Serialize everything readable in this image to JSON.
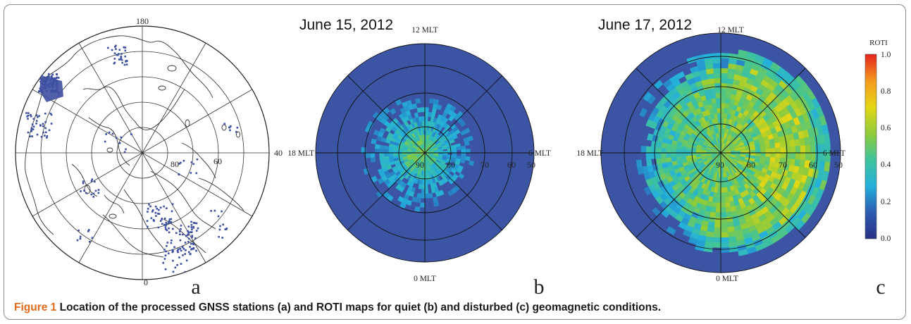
{
  "panel_a": {
    "labels": {
      "top": "180",
      "bottom": "0",
      "right": "40",
      "lat_80": "80",
      "lat_60": "60"
    },
    "letter": "a",
    "station_color": "#3d4fa0"
  },
  "panel_b": {
    "date": "June 15, 2012",
    "mlt": {
      "top": "12 MLT",
      "bottom": "0 MLT",
      "left": "18 MLT",
      "right": "6 MLT"
    },
    "lat_ticks": [
      "90",
      "80",
      "70",
      "60",
      "50"
    ],
    "letter": "b"
  },
  "panel_c": {
    "date": "June 17, 2012",
    "mlt": {
      "top": "12 MLT",
      "bottom": "0 MLT",
      "left": "18 MLT",
      "right": "6 MLT"
    },
    "lat_ticks": [
      "90",
      "80",
      "70",
      "60",
      "50"
    ],
    "letter": "c"
  },
  "colorbar": {
    "title": "ROTI",
    "ticks": [
      "1.0",
      "0.8",
      "0.6",
      "0.4",
      "0.2",
      "0.0"
    ],
    "stops": [
      "#2a2f86",
      "#2c5bb0",
      "#24b0dc",
      "#3fc49a",
      "#8fcb3a",
      "#e5d714",
      "#f29a1c",
      "#e5231e"
    ],
    "background": "#3b55a4"
  },
  "caption": {
    "label": "Figure 1",
    "text": " Location of the processed GNSS stations (a) and ROTI maps for quiet (b) and disturbed (c) geomagnetic conditions."
  }
}
